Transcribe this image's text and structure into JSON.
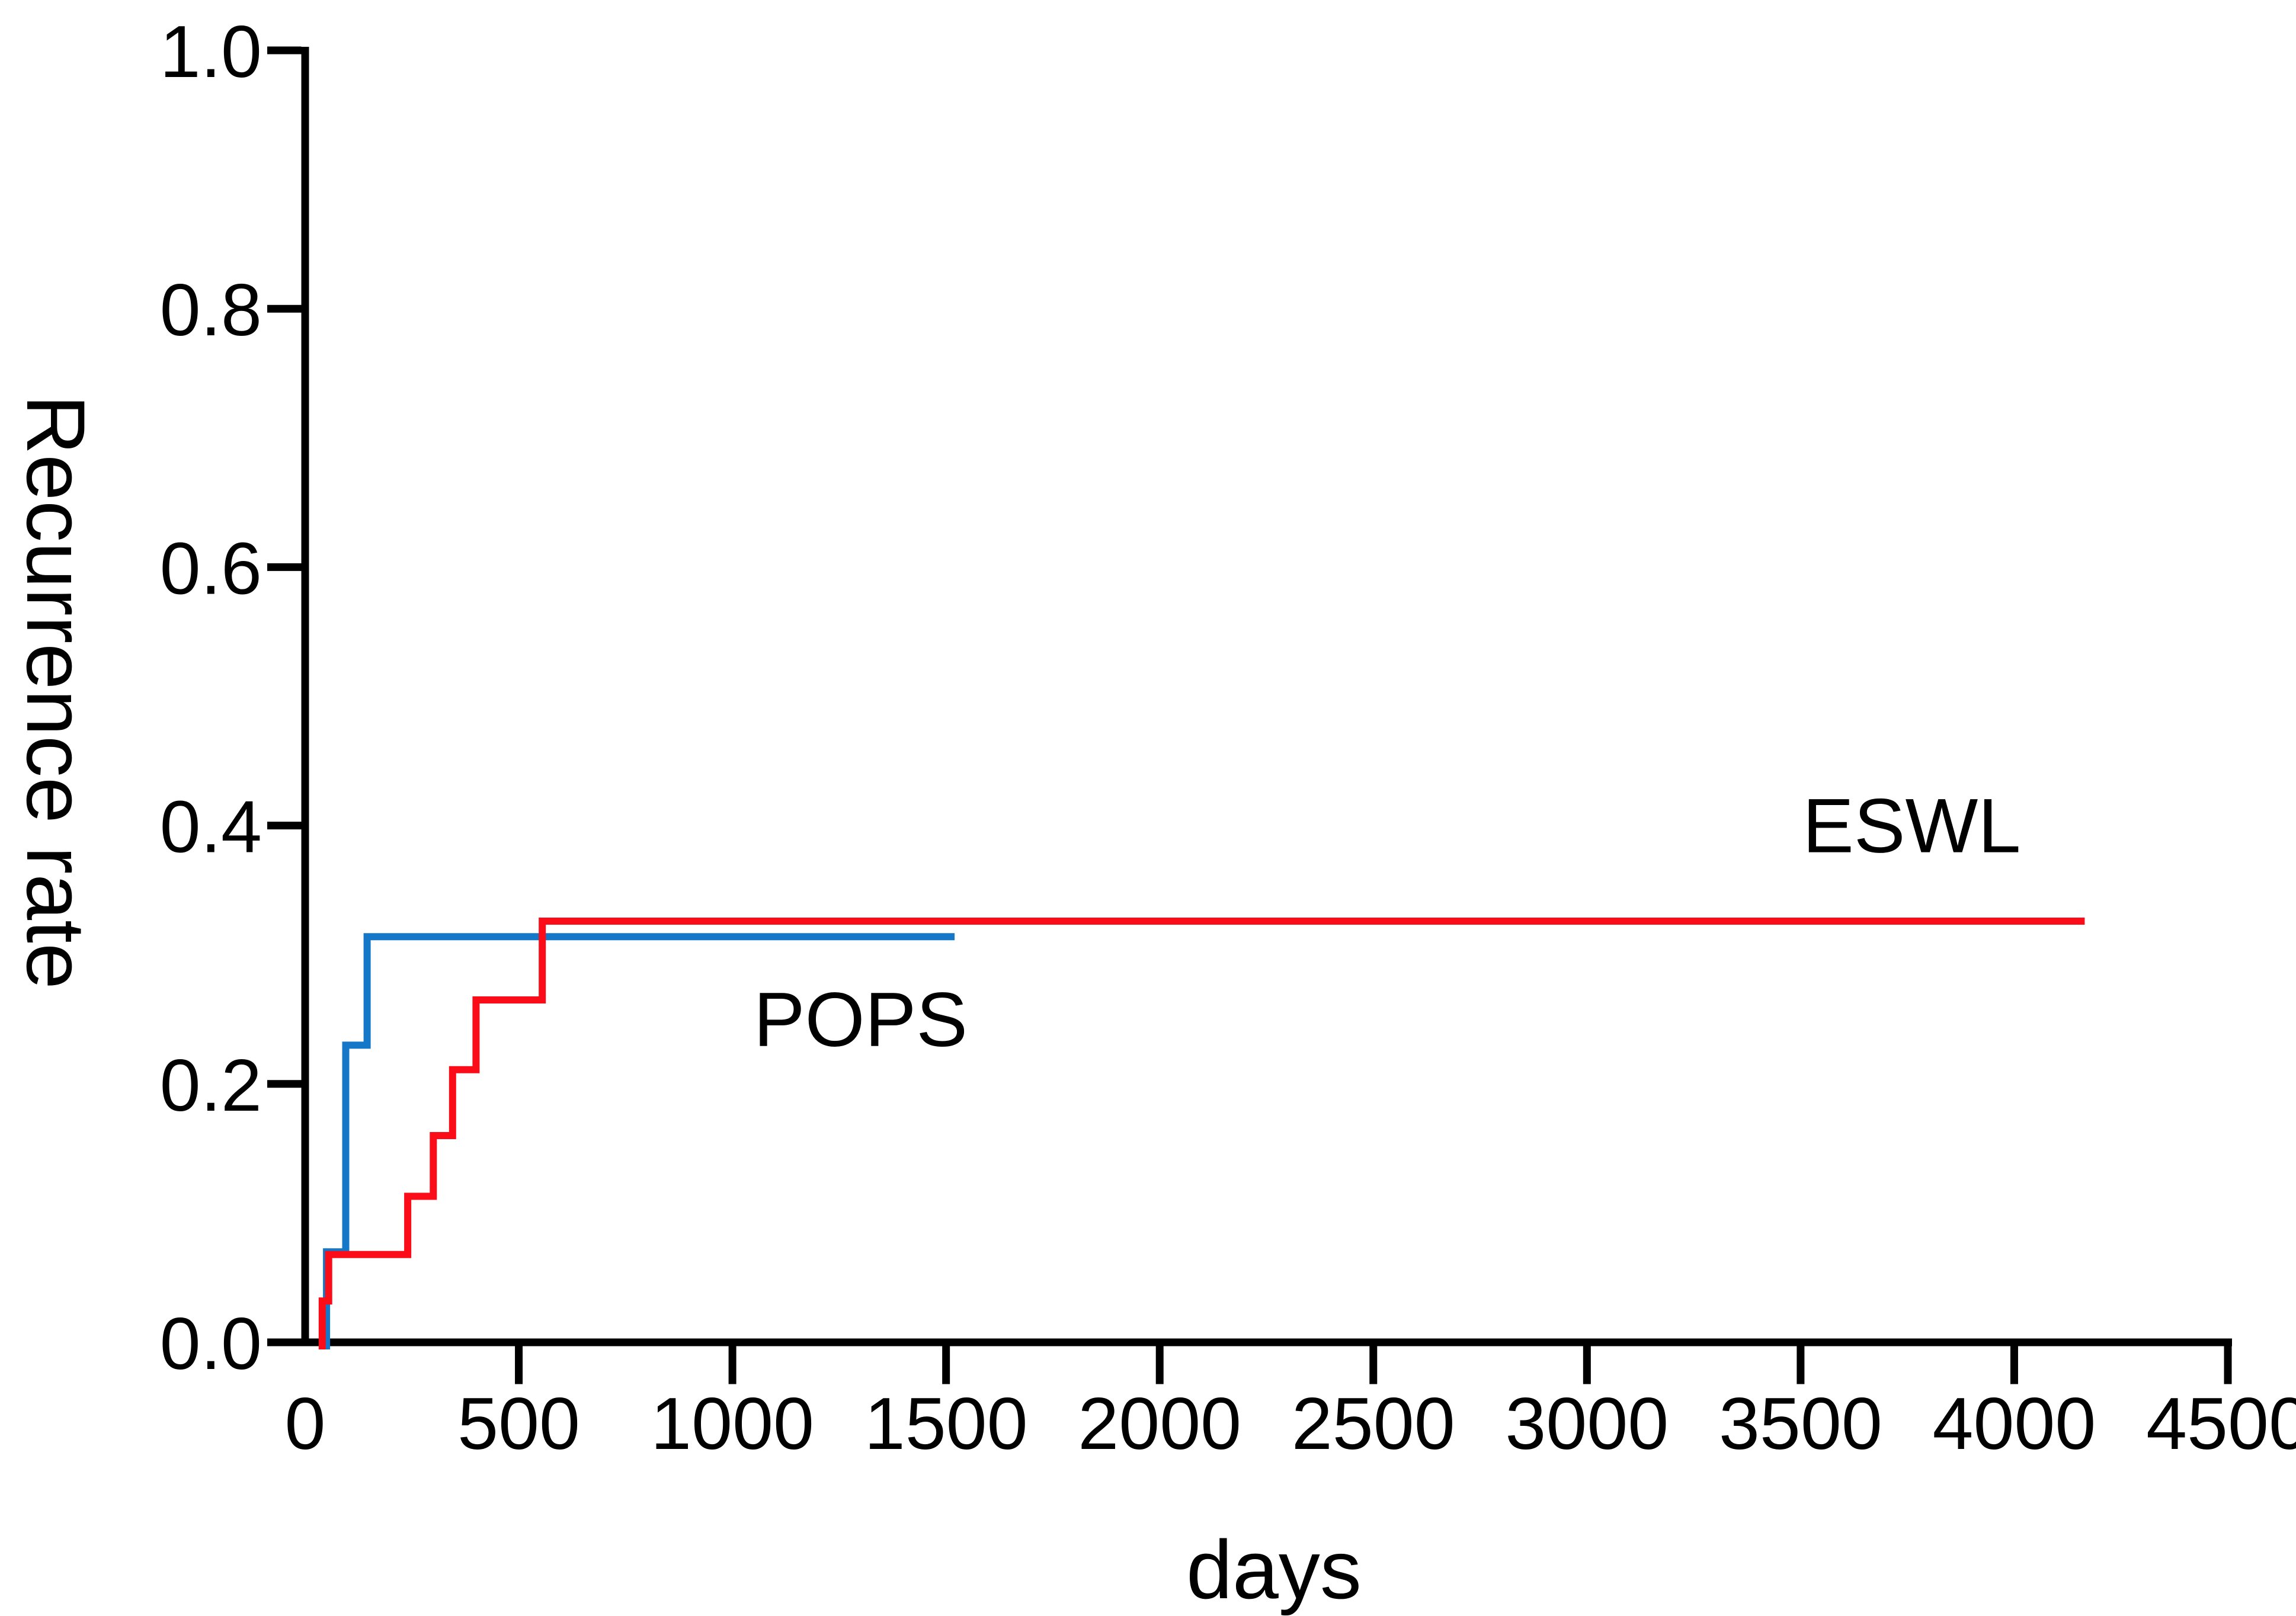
{
  "figure": {
    "background": "#FFFFFF"
  },
  "chart_data": {
    "type": "line",
    "subtype": "kaplan-meier-step",
    "title": "",
    "xlabel": "days",
    "ylabel": "Recurrence rate",
    "xlim": [
      0,
      4500
    ],
    "ylim": [
      0,
      1
    ],
    "x_ticks": [
      0,
      500,
      1000,
      1500,
      2000,
      2500,
      3000,
      3500,
      4000,
      4500
    ],
    "y_ticks": [
      0,
      0.2,
      0.4,
      0.6,
      0.8,
      1
    ],
    "y_tick_decimals": 1,
    "grid": false,
    "axis_color": "#000000",
    "legend_position": "inline-annotations",
    "series": [
      {
        "name": "POPS",
        "color": "#1477C8",
        "points": [
          [
            50,
            0
          ],
          [
            50,
            0.07
          ],
          [
            95,
            0.07
          ],
          [
            95,
            0.23
          ],
          [
            145,
            0.23
          ],
          [
            145,
            0.314
          ],
          [
            1520,
            0.314
          ]
        ]
      },
      {
        "name": "ESWL",
        "color": "#FA0D18",
        "points": [
          [
            40,
            0
          ],
          [
            40,
            0.032
          ],
          [
            55,
            0.032
          ],
          [
            55,
            0.068
          ],
          [
            240,
            0.068
          ],
          [
            240,
            0.113
          ],
          [
            300,
            0.113
          ],
          [
            300,
            0.16
          ],
          [
            345,
            0.16
          ],
          [
            345,
            0.211
          ],
          [
            400,
            0.211
          ],
          [
            400,
            0.265
          ],
          [
            555,
            0.265
          ],
          [
            555,
            0.326
          ],
          [
            4165,
            0.326
          ]
        ]
      }
    ],
    "annotations": [
      {
        "text": "ESWL",
        "x": 3760,
        "y": 0.4,
        "color": "#FA0D18"
      },
      {
        "text": "POPS",
        "x": 1300,
        "y": 0.25,
        "color": "#1477C8"
      }
    ]
  }
}
